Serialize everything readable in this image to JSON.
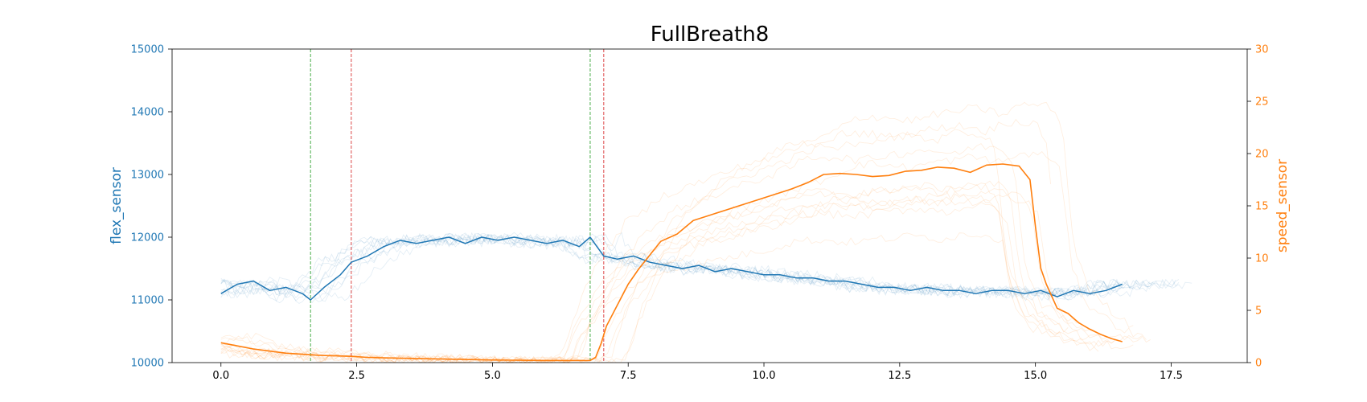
{
  "chart_data": {
    "type": "line",
    "title": "FullBreath8",
    "xlabel": "",
    "ylabel": "flex_sensor",
    "y2label": "speed_sensor",
    "xlim": [
      -0.9,
      18.9
    ],
    "ylim": [
      10000,
      15000
    ],
    "y2lim": [
      0,
      30
    ],
    "x_ticks": [
      "0.0",
      "2.5",
      "5.0",
      "7.5",
      "10.0",
      "12.5",
      "15.0",
      "17.5"
    ],
    "y_ticks": [
      "10000",
      "11000",
      "12000",
      "13000",
      "14000",
      "15000"
    ],
    "y2_ticks": [
      "0",
      "5",
      "10",
      "15",
      "20",
      "25",
      "30"
    ],
    "grid": false,
    "colors": {
      "flex": "#1f77b4",
      "speed": "#ff7f0e",
      "green_line": "#2ca02c",
      "red_line": "#d62728"
    },
    "vlines": [
      {
        "x": 1.65,
        "color": "green"
      },
      {
        "x": 2.4,
        "color": "red"
      },
      {
        "x": 6.8,
        "color": "green"
      },
      {
        "x": 7.05,
        "color": "red"
      }
    ],
    "series": [
      {
        "axis": "left",
        "x": [
          0.0,
          0.3,
          0.6,
          0.9,
          1.2,
          1.5,
          1.65,
          1.9,
          2.2,
          2.4,
          2.7,
          3.0,
          3.3,
          3.6,
          3.9,
          4.2,
          4.5,
          4.8,
          5.1,
          5.4,
          5.7,
          6.0,
          6.3,
          6.6,
          6.8,
          7.05,
          7.3,
          7.6,
          7.9,
          8.2,
          8.5,
          8.8,
          9.1,
          9.4,
          9.7,
          10.0,
          10.3,
          10.6,
          10.9,
          11.2,
          11.5,
          11.8,
          12.1,
          12.4,
          12.7,
          13.0,
          13.3,
          13.6,
          13.9,
          14.2,
          14.5,
          14.8,
          15.1,
          15.4,
          15.7,
          16.0,
          16.3,
          16.6
        ],
        "values": [
          11100,
          11250,
          11300,
          11150,
          11200,
          11100,
          11000,
          11200,
          11400,
          11600,
          11700,
          11850,
          11950,
          11900,
          11950,
          12000,
          11900,
          12000,
          11950,
          12000,
          11950,
          11900,
          11950,
          11850,
          12000,
          11700,
          11650,
          11700,
          11600,
          11550,
          11500,
          11550,
          11450,
          11500,
          11450,
          11400,
          11400,
          11350,
          11350,
          11300,
          11300,
          11250,
          11200,
          11200,
          11150,
          11200,
          11150,
          11150,
          11100,
          11150,
          11150,
          11100,
          11150,
          11050,
          11150,
          11100,
          11150,
          11250
        ]
      },
      {
        "axis": "right",
        "x": [
          0.0,
          0.3,
          0.6,
          0.9,
          1.2,
          1.5,
          1.8,
          2.1,
          2.4,
          2.7,
          3.0,
          3.5,
          4.0,
          4.5,
          5.0,
          5.5,
          6.0,
          6.5,
          6.8,
          6.9,
          7.0,
          7.1,
          7.3,
          7.5,
          7.7,
          7.9,
          8.1,
          8.4,
          8.7,
          9.0,
          9.3,
          9.6,
          9.9,
          10.2,
          10.5,
          10.8,
          11.1,
          11.4,
          11.7,
          12.0,
          12.3,
          12.6,
          12.9,
          13.2,
          13.5,
          13.8,
          14.1,
          14.4,
          14.7,
          14.9,
          15.0,
          15.1,
          15.2,
          15.4,
          15.6,
          15.8,
          16.0,
          16.2,
          16.4,
          16.6
        ],
        "values": [
          1.9,
          1.6,
          1.3,
          1.1,
          0.9,
          0.8,
          0.7,
          0.65,
          0.6,
          0.5,
          0.45,
          0.4,
          0.35,
          0.3,
          0.25,
          0.22,
          0.2,
          0.2,
          0.2,
          0.5,
          1.8,
          3.5,
          5.5,
          7.5,
          9.0,
          10.3,
          11.6,
          12.3,
          13.6,
          14.1,
          14.6,
          15.1,
          15.6,
          16.1,
          16.6,
          17.2,
          18.0,
          18.1,
          18.0,
          17.8,
          17.9,
          18.3,
          18.4,
          18.7,
          18.6,
          18.2,
          18.9,
          19.0,
          18.8,
          17.5,
          13.0,
          9.0,
          7.5,
          5.2,
          4.7,
          3.8,
          3.2,
          2.7,
          2.3,
          2.0
        ]
      }
    ]
  }
}
